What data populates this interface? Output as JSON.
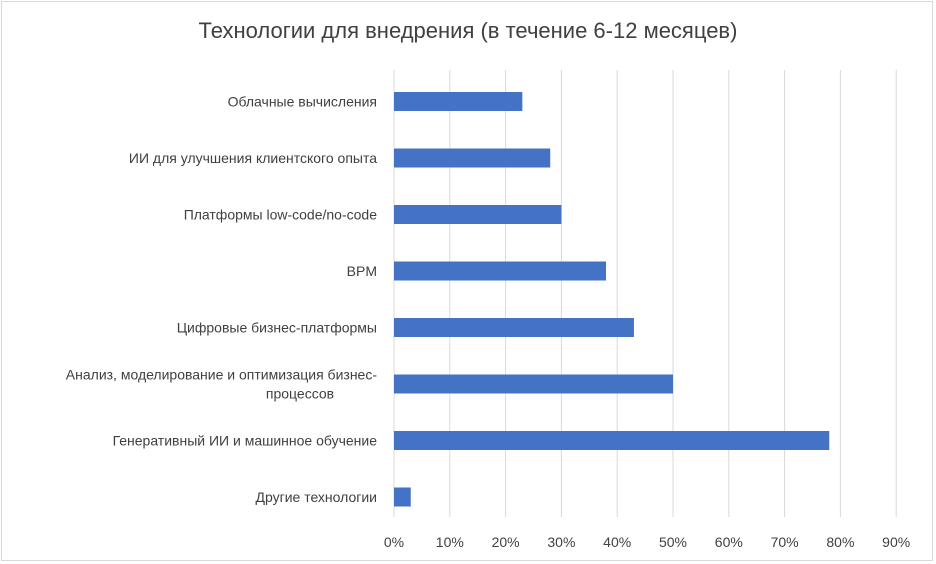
{
  "chart_data": {
    "type": "bar",
    "orientation": "horizontal",
    "title": "Технологии для внедрения (в течение 6-12 месяцев)",
    "categories": [
      [
        "Облачные вычисления"
      ],
      [
        "ИИ для улучшения клиентского опыта"
      ],
      [
        "Платформы low-code/no-code"
      ],
      [
        "BPM"
      ],
      [
        "Цифровые бизнес-платформы"
      ],
      [
        "Анализ, моделирование и оптимизация бизнес-",
        "процессов"
      ],
      [
        "Генеративный ИИ и машинное обучение"
      ],
      [
        "Другие технологии"
      ]
    ],
    "values": [
      23,
      28,
      30,
      38,
      43,
      50,
      78,
      3
    ],
    "x_ticks": [
      "0%",
      "10%",
      "20%",
      "30%",
      "40%",
      "50%",
      "60%",
      "70%",
      "80%",
      "90%"
    ],
    "xlim": [
      0,
      90
    ],
    "grid": true,
    "bar_color": "#4472c4",
    "grid_color": "#d9d9d9"
  }
}
